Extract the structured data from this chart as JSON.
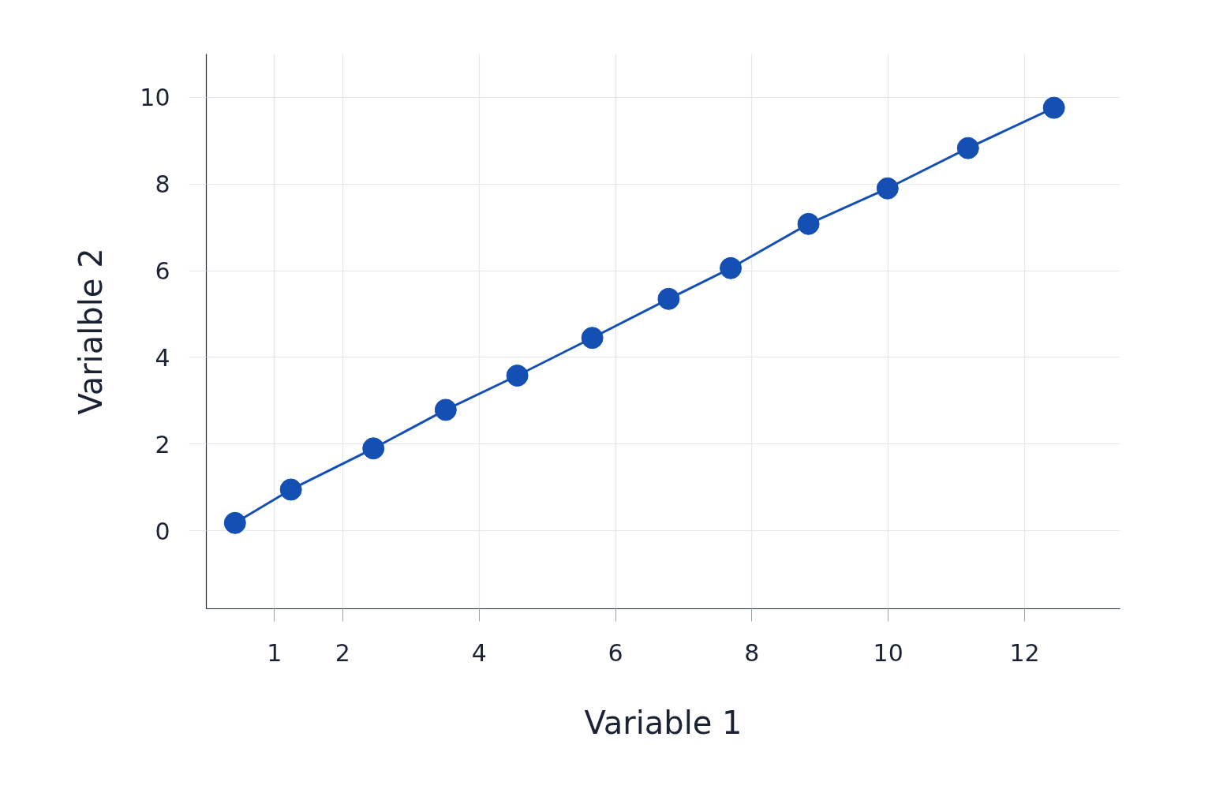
{
  "chart_data": {
    "type": "line",
    "xlabel": "Variable 1",
    "ylabel": "Varialble 2",
    "x": [
      0.42,
      1.24,
      2.45,
      3.51,
      4.56,
      5.66,
      6.78,
      7.69,
      8.83,
      9.99,
      11.17,
      12.43
    ],
    "series": [
      {
        "color": "#1450b4",
        "values": [
          0.18,
          0.95,
          1.9,
          2.79,
          3.58,
          4.45,
          5.35,
          6.06,
          7.08,
          7.9,
          8.83,
          9.76
        ]
      }
    ],
    "xlim": [
      0,
      13.4
    ],
    "ylim": [
      -1.8,
      11
    ],
    "xticks": [
      1,
      2,
      4,
      6,
      8,
      10,
      12
    ],
    "yticks": [
      0,
      2,
      4,
      6,
      8,
      10
    ],
    "grid": true,
    "marker": "circle",
    "line_style": "solid"
  }
}
